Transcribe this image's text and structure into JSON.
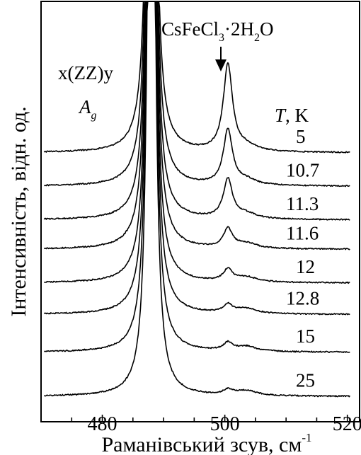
{
  "chart_data": {
    "type": "line",
    "title": "",
    "xlabel": "Раманівський зсув, см",
    "xlabel_superscript": "-1",
    "ylabel": "Інтенсивність, відн. од.",
    "xlim": [
      470,
      522
    ],
    "xticks": [
      480,
      500,
      520
    ],
    "annotations": {
      "compound": "CsFeCl",
      "compound_sub1": "3",
      "compound_mid": "·2H",
      "compound_sub2": "2",
      "compound_end": "O",
      "polarization": "x(ZZ)y",
      "symmetry": "A",
      "symmetry_sub": "g",
      "temperature_label": "T",
      "temperature_unit": ", K"
    },
    "peak_center_x": 488,
    "peak2_center_x": 500.5,
    "series": [
      {
        "label": "5",
        "baseline": 0.64,
        "peak2_height": 0.205
      },
      {
        "label": "10.7",
        "baseline": 0.56,
        "peak2_height": 0.13
      },
      {
        "label": "11.3",
        "baseline": 0.48,
        "peak2_height": 0.093
      },
      {
        "label": "11.6",
        "baseline": 0.41,
        "peak2_height": 0.045
      },
      {
        "label": "12",
        "baseline": 0.33,
        "peak2_height": 0.028
      },
      {
        "label": "12.8",
        "baseline": 0.255,
        "peak2_height": 0.02
      },
      {
        "label": "15",
        "baseline": 0.165,
        "peak2_height": 0.018
      },
      {
        "label": "25",
        "baseline": 0.06,
        "peak2_height": 0.012
      }
    ]
  }
}
